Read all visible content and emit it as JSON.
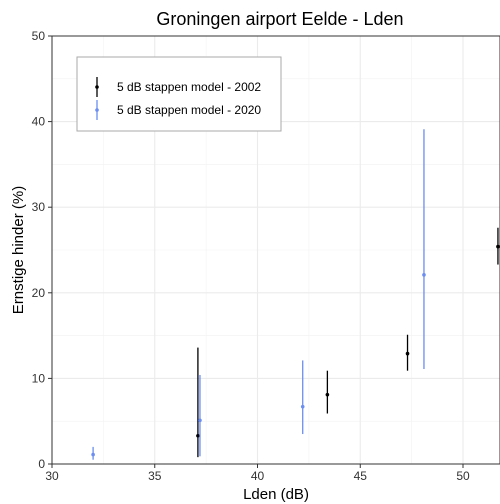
{
  "chart_data": {
    "type": "scatter",
    "title": "Groningen airport Eelde - Lden",
    "xlabel": "Lden (dB)",
    "ylabel": "Ernstige hinder (%)",
    "xlim": [
      30,
      51.8
    ],
    "ylim": [
      0,
      50
    ],
    "x_ticks": [
      30,
      35,
      40,
      45,
      50
    ],
    "y_ticks": [
      0,
      10,
      20,
      30,
      40,
      50
    ],
    "grid": true,
    "legend_position": "top-left",
    "series": [
      {
        "name": "5 dB stappen model - 2002",
        "color": "#000000",
        "points": [
          {
            "x": 37.1,
            "y": 3.3,
            "lo": 0.8,
            "hi": 13.6
          },
          {
            "x": 43.4,
            "y": 8.1,
            "lo": 5.9,
            "hi": 10.9
          },
          {
            "x": 47.3,
            "y": 12.9,
            "lo": 10.9,
            "hi": 15.1
          },
          {
            "x": 51.7,
            "y": 25.4,
            "lo": 23.3,
            "hi": 27.6
          }
        ]
      },
      {
        "name": "5 dB stappen model - 2020",
        "color": "#6b8ef0",
        "points": [
          {
            "x": 32.0,
            "y": 1.1,
            "lo": 0.5,
            "hi": 2.0
          },
          {
            "x": 37.2,
            "y": 5.1,
            "lo": 0.9,
            "hi": 10.4
          },
          {
            "x": 42.2,
            "y": 6.7,
            "lo": 3.5,
            "hi": 12.1
          },
          {
            "x": 48.1,
            "y": 22.1,
            "lo": 11.1,
            "hi": 39.1
          }
        ]
      }
    ]
  }
}
